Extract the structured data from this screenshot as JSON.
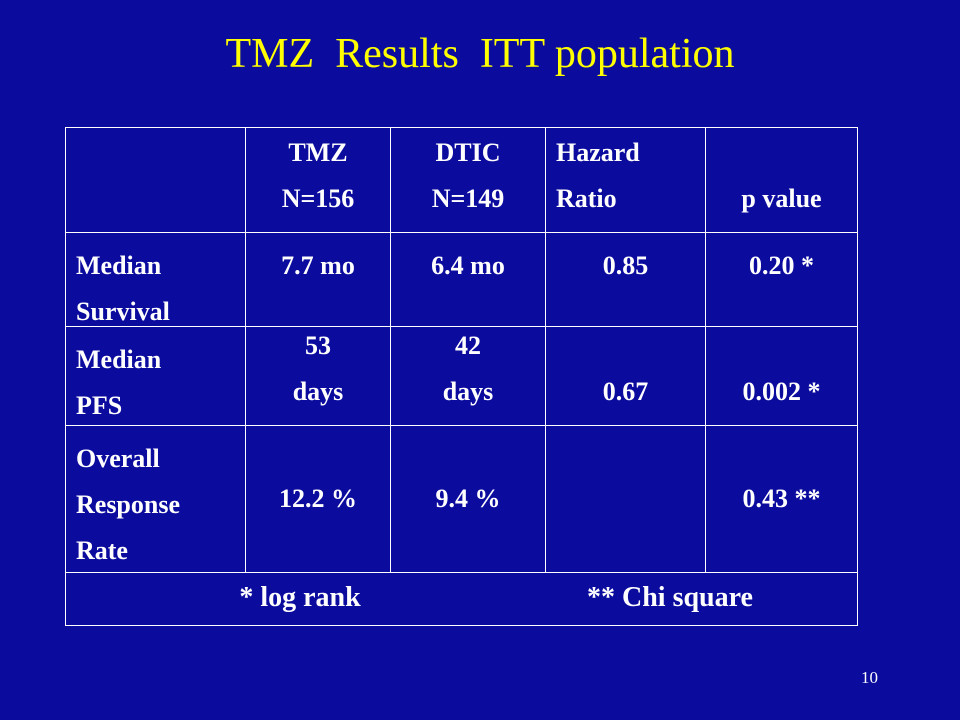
{
  "title": "TMZ  Results  ITT population",
  "table": {
    "header": [
      [
        "TMZ",
        "N=156"
      ],
      [
        "DTIC",
        "N=149"
      ],
      [
        "Hazard",
        "Ratio"
      ],
      [
        "p value"
      ]
    ],
    "rows": [
      {
        "label": [
          "Median",
          "Survival"
        ],
        "cells": [
          [
            "7.7 mo"
          ],
          [
            "6.4 mo"
          ],
          [
            "0.85"
          ],
          [
            "0.20 *"
          ]
        ]
      },
      {
        "label": [
          "Median",
          "PFS"
        ],
        "cells": [
          [
            "53",
            "days"
          ],
          [
            "42",
            "days"
          ],
          [
            "0.67"
          ],
          [
            "0.002 *"
          ]
        ]
      },
      {
        "label": [
          "Overall",
          "Response",
          "Rate"
        ],
        "cells": [
          [
            "12.2 %"
          ],
          [
            "9.4 %"
          ],
          null,
          [
            "0.43 **"
          ]
        ]
      }
    ],
    "footnotes": [
      "* log rank",
      "** Chi square"
    ]
  },
  "page_number": "10"
}
